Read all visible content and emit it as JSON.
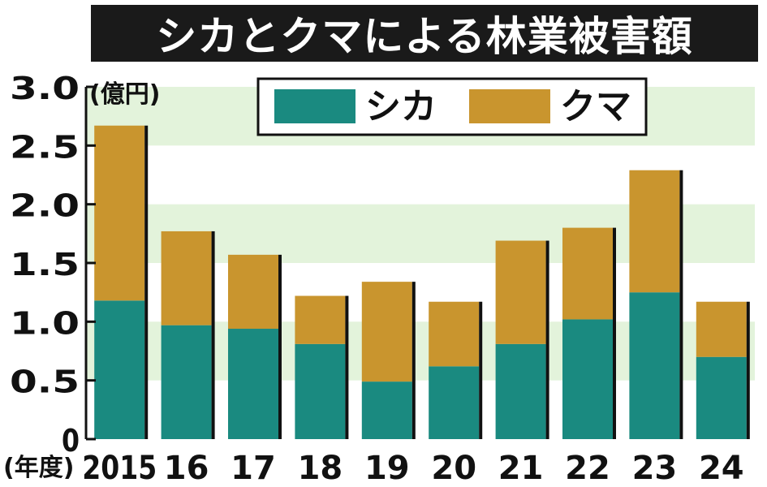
{
  "chart_data": {
    "type": "bar",
    "stacked": true,
    "title": "シカとクマによる林業被害額",
    "y_unit": "(億円)",
    "x_unit": "(年度)",
    "categories": [
      "2015",
      "16",
      "17",
      "18",
      "19",
      "20",
      "21",
      "22",
      "23",
      "24"
    ],
    "series": [
      {
        "name": "シカ",
        "color": "#1a8a80",
        "values": [
          1.18,
          0.97,
          0.94,
          0.81,
          0.49,
          0.62,
          0.81,
          1.02,
          1.25,
          0.7
        ]
      },
      {
        "name": "クマ",
        "color": "#c9952e",
        "values": [
          1.49,
          0.8,
          0.63,
          0.41,
          0.85,
          0.55,
          0.88,
          0.78,
          1.04,
          0.47
        ]
      }
    ],
    "y_ticks": [
      "0",
      "0.5",
      "1.0",
      "1.5",
      "2.0",
      "2.5",
      "3.0"
    ],
    "ylim": [
      0,
      3.0
    ],
    "legend_position": "top",
    "band_color": "#e3f3db"
  }
}
